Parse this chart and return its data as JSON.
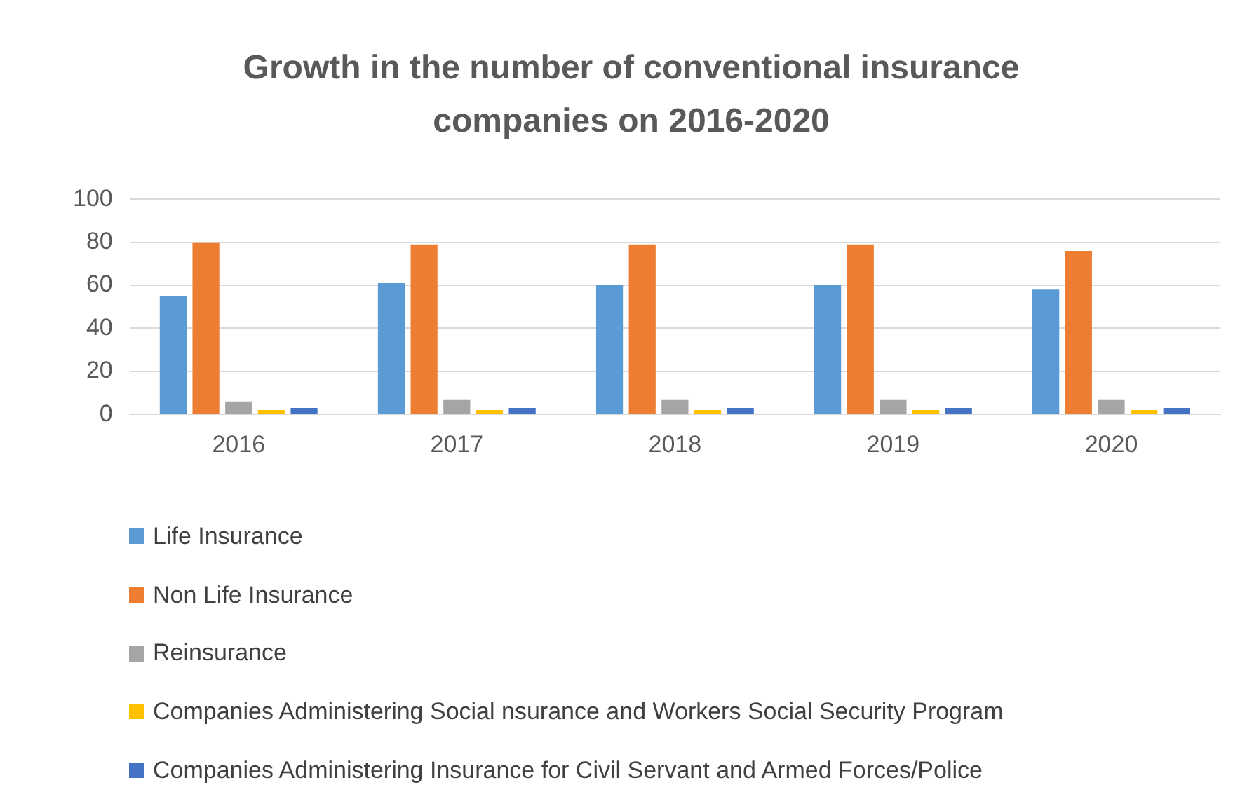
{
  "chart_data": {
    "type": "bar",
    "title": "Growth in the number of conventional insurance companies on 2016-2020",
    "categories": [
      "2016",
      "2017",
      "2018",
      "2019",
      "2020"
    ],
    "series": [
      {
        "name": "Life Insurance",
        "color": "#5b9bd5",
        "values": [
          55,
          61,
          60,
          60,
          58
        ]
      },
      {
        "name": "Non Life Insurance",
        "color": "#ed7d31",
        "values": [
          80,
          79,
          79,
          79,
          76
        ]
      },
      {
        "name": "Reinsurance",
        "color": "#a5a5a5",
        "values": [
          6,
          7,
          7,
          7,
          7
        ]
      },
      {
        "name": "Companies Administering Social nsurance and Workers Social Security Program",
        "color": "#ffc000",
        "values": [
          2,
          2,
          2,
          2,
          2
        ]
      },
      {
        "name": "Companies Administering Insurance for Civil Servant and Armed Forces/Police",
        "color": "#4472c4",
        "values": [
          3,
          3,
          3,
          3,
          3
        ]
      }
    ],
    "ylim": [
      0,
      100
    ],
    "yticks": [
      0,
      20,
      40,
      60,
      80,
      100
    ],
    "grid": "y",
    "legend": "bottom"
  }
}
